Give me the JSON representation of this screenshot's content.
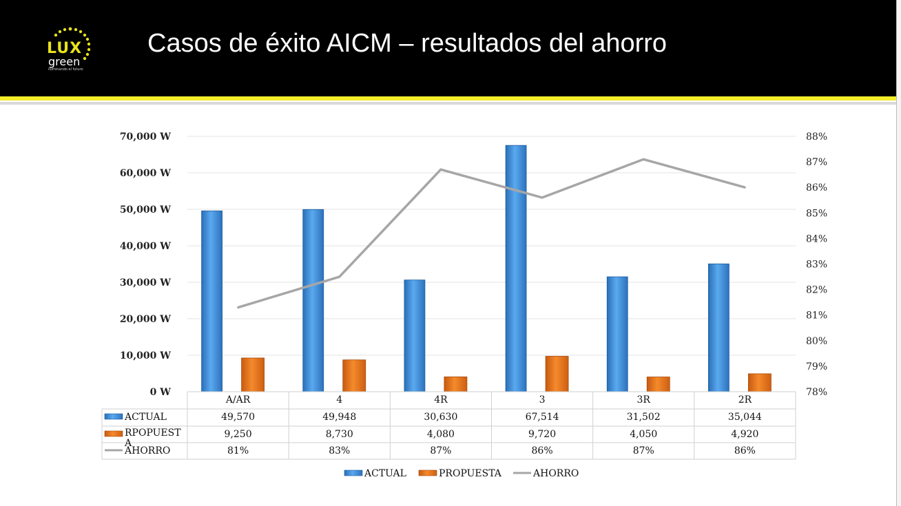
{
  "header": {
    "title": "Casos de éxito  AICM – resultados del ahorro",
    "logo": {
      "brand_top": "LUX",
      "brand_bottom": "green",
      "tagline": "iluminando el futuro"
    }
  },
  "colors": {
    "actual": "#3d8fdc",
    "propuesta": "#e8701a",
    "ahorro": "#a6a6a6",
    "header_bg": "#000000",
    "stripe": "#f2ee2a"
  },
  "chart_data": {
    "type": "bar",
    "categories": [
      "A/AR",
      "4",
      "4R",
      "3",
      "3R",
      "2R"
    ],
    "series": [
      {
        "name": "ACTUAL",
        "kind": "bar",
        "axis": "left",
        "values": [
          49570,
          49948,
          30630,
          67514,
          31502,
          35044
        ]
      },
      {
        "name": "PROPUESTA",
        "kind": "bar",
        "axis": "left",
        "values": [
          9250,
          8730,
          4080,
          9720,
          4050,
          4920
        ]
      },
      {
        "name": "AHORRO",
        "kind": "line",
        "axis": "right",
        "values": [
          81.3,
          82.5,
          86.7,
          85.6,
          87.1,
          86.0
        ]
      }
    ],
    "y_left": {
      "ticks": [
        "0  W",
        "10,000  W",
        "20,000  W",
        "30,000  W",
        "40,000  W",
        "50,000  W",
        "60,000  W",
        "70,000  W"
      ],
      "min": 0,
      "max": 70000
    },
    "y_right": {
      "ticks": [
        "78%",
        "79%",
        "80%",
        "81%",
        "82%",
        "83%",
        "84%",
        "85%",
        "86%",
        "87%",
        "88%"
      ],
      "min": 78,
      "max": 88
    },
    "table": {
      "rows": [
        {
          "label": "ACTUAL",
          "values": [
            "49,570",
            "49,948",
            "30,630",
            "67,514",
            "31,502",
            "35,044"
          ]
        },
        {
          "label_line1": "RPOPUEST",
          "label_line2": "A",
          "values": [
            "9,250",
            "8,730",
            "4,080",
            "9,720",
            "4,050",
            "4,920"
          ]
        },
        {
          "label": "AHORRO",
          "values": [
            "81%",
            "83%",
            "87%",
            "86%",
            "87%",
            "86%"
          ]
        }
      ]
    },
    "legend": [
      "ACTUAL",
      "PROPUESTA",
      "AHORRO"
    ],
    "grid": true,
    "legend_position": "bottom"
  }
}
